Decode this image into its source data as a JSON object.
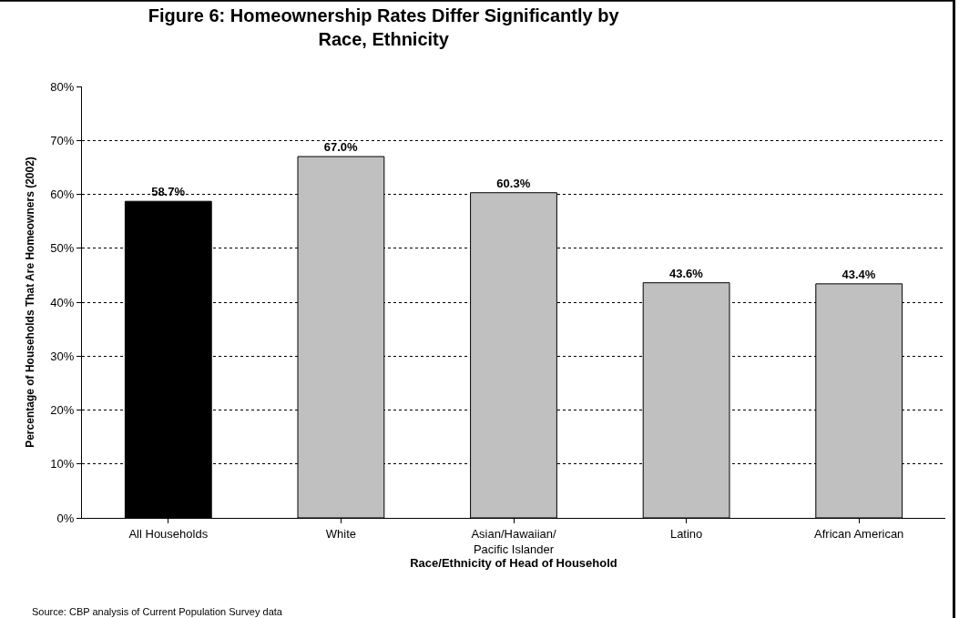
{
  "chart_data": {
    "type": "bar",
    "title": "Figure 6: Homeownership Rates Differ Significantly by Race, Ethnicity",
    "xlabel": "Race/Ethnicity of Head of Household",
    "ylabel": "Percentage of Households That Are Homeowners (2002)",
    "categories": [
      "All Households",
      "White",
      "Asian/Hawaiian/ Pacific Islander",
      "Latino",
      "African American"
    ],
    "values": [
      58.7,
      67.0,
      60.3,
      43.6,
      43.4
    ],
    "colors": [
      "#000000",
      "#c0c0c0",
      "#c0c0c0",
      "#c0c0c0",
      "#c0c0c0"
    ],
    "value_labels": [
      "58.7%",
      "67.0%",
      "60.3%",
      "43.6%",
      "43.4%"
    ],
    "ylim": [
      0,
      80
    ],
    "yticks": [
      {
        "value": 0,
        "label": "0%"
      },
      {
        "value": 10,
        "label": "10%"
      },
      {
        "value": 20,
        "label": "20%"
      },
      {
        "value": 30,
        "label": "30%"
      },
      {
        "value": 40,
        "label": "40%"
      },
      {
        "value": 50,
        "label": "50%"
      },
      {
        "value": 60,
        "label": "60%"
      },
      {
        "value": 70,
        "label": "70%"
      },
      {
        "value": 80,
        "label": "80%"
      }
    ],
    "grid": "y",
    "line_style": "dotted",
    "legend": false,
    "annotations": [
      "Source: CBP analysis of Current Population Survey data"
    ]
  }
}
